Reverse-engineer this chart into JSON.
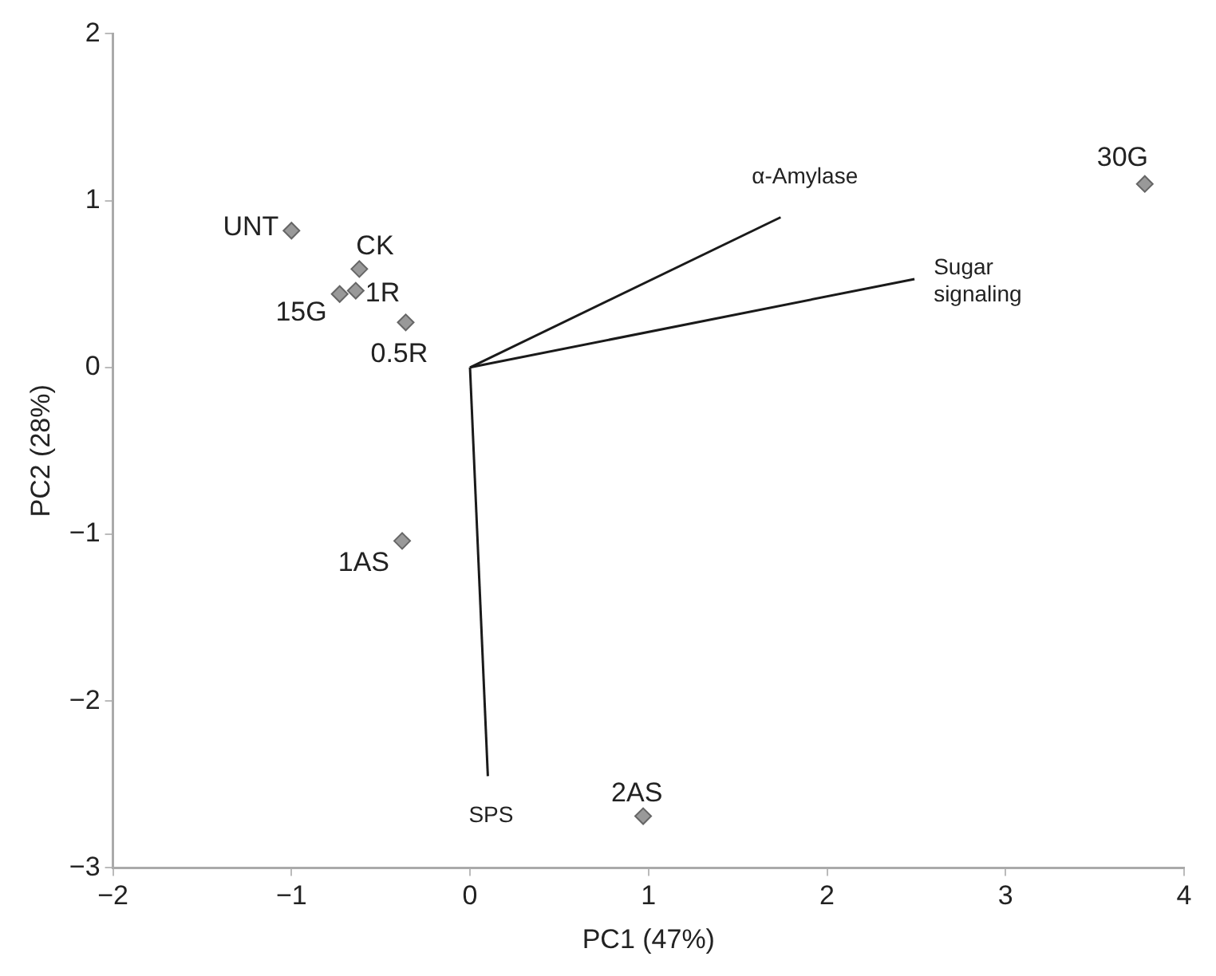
{
  "chart_data": {
    "type": "scatter",
    "xlabel": "PC1 (47%)",
    "ylabel": "PC2 (28%)",
    "xlim": [
      -2,
      4
    ],
    "ylim": [
      -3,
      2
    ],
    "xticks": [
      -2,
      -1,
      0,
      1,
      2,
      3,
      4
    ],
    "yticks": [
      -3,
      -2,
      -1,
      0,
      1,
      2
    ],
    "grid": false,
    "legend": false,
    "series": [
      {
        "marker": "diamond",
        "color": "#999999",
        "x": [
          -1.0,
          -0.62,
          -0.64,
          -0.73,
          -0.36,
          -0.38,
          0.97,
          3.78
        ],
        "values": [
          0.82,
          0.59,
          0.46,
          0.44,
          0.27,
          -1.04,
          -2.69,
          1.1
        ]
      },
      {
        "type": "line",
        "marker": "none",
        "name": "α-Amylase",
        "color": "#1a1a1a",
        "x": [
          0,
          1.74
        ],
        "values": [
          0,
          0.9
        ]
      },
      {
        "type": "line",
        "marker": "none",
        "name": "Sugar signaling",
        "color": "#1a1a1a",
        "x": [
          0,
          2.49
        ],
        "values": [
          0,
          0.53
        ]
      },
      {
        "type": "line",
        "marker": "none",
        "name": "SPS",
        "color": "#1a1a1a",
        "x": [
          0,
          0.1
        ],
        "values": [
          0,
          -2.45
        ]
      }
    ],
    "annotations": [
      {
        "text": "UNT",
        "x": -1.0,
        "y": 0.82
      },
      {
        "text": "CK",
        "x": -0.62,
        "y": 0.59
      },
      {
        "text": "1R",
        "x": -0.64,
        "y": 0.46
      },
      {
        "text": "15G",
        "x": -0.73,
        "y": 0.44
      },
      {
        "text": "0.5R",
        "x": -0.36,
        "y": 0.27
      },
      {
        "text": "1AS",
        "x": -0.38,
        "y": -1.04
      },
      {
        "text": "2AS",
        "x": 0.97,
        "y": -2.69
      },
      {
        "text": "30G",
        "x": 3.78,
        "y": 1.1
      }
    ]
  }
}
